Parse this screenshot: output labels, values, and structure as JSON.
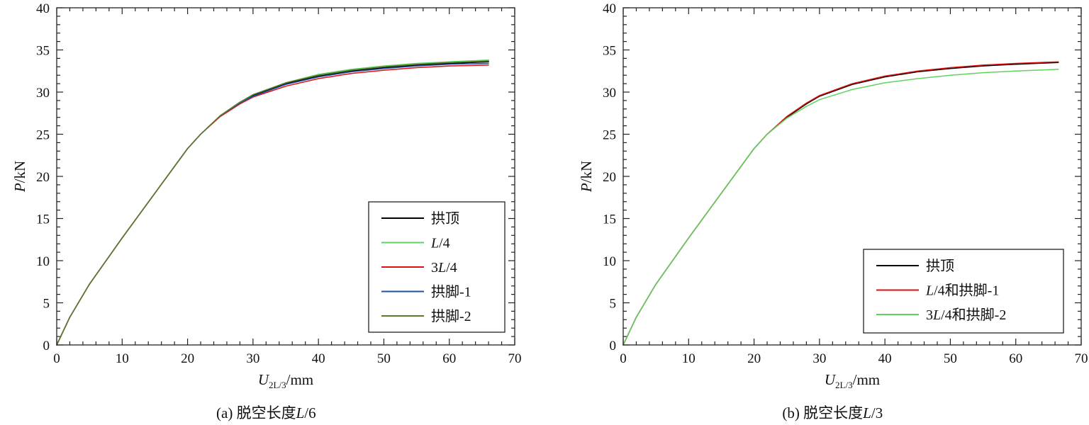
{
  "chart_data": [
    {
      "type": "line",
      "caption": "(a) 脱空长度L/6",
      "xlabel": {
        "main": "U",
        "sub": "2L/3",
        "unit": "/mm"
      },
      "ylabel": {
        "main": "P",
        "unit": "/kN"
      },
      "xlim": [
        0,
        70
      ],
      "ylim": [
        0,
        40
      ],
      "xticks": [
        0,
        10,
        20,
        30,
        40,
        50,
        60,
        70
      ],
      "yticks": [
        0,
        5,
        10,
        15,
        20,
        25,
        30,
        35,
        40
      ],
      "grid": false,
      "legend_position": "bottom-right",
      "series": [
        {
          "name": "拱顶",
          "color": "#000000",
          "x": [
            0,
            2,
            5,
            10,
            15,
            20,
            22,
            25,
            28,
            30,
            35,
            40,
            45,
            50,
            55,
            60,
            66
          ],
          "y": [
            0,
            3.3,
            7.2,
            12.7,
            18.0,
            23.3,
            25.0,
            27.2,
            28.8,
            29.6,
            31.0,
            31.9,
            32.5,
            32.9,
            33.2,
            33.4,
            33.6
          ]
        },
        {
          "name": "L/4",
          "color": "#5fd35f",
          "x": [
            0,
            2,
            5,
            10,
            15,
            20,
            22,
            25,
            28,
            30,
            35,
            40,
            45,
            50,
            55,
            60,
            66
          ],
          "y": [
            0,
            3.3,
            7.2,
            12.7,
            18.0,
            23.3,
            25.0,
            27.2,
            28.8,
            29.7,
            31.1,
            32.1,
            32.7,
            33.1,
            33.4,
            33.6,
            33.8
          ]
        },
        {
          "name": "3L/4",
          "color": "#e01010",
          "x": [
            0,
            2,
            5,
            10,
            15,
            20,
            22,
            25,
            28,
            30,
            35,
            40,
            45,
            50,
            55,
            60,
            66
          ],
          "y": [
            0,
            3.3,
            7.2,
            12.7,
            18.0,
            23.3,
            25.0,
            27.1,
            28.6,
            29.4,
            30.7,
            31.6,
            32.2,
            32.6,
            32.9,
            33.1,
            33.2
          ]
        },
        {
          "name": "拱脚-1",
          "color": "#1f4fa8",
          "x": [
            0,
            2,
            5,
            10,
            15,
            20,
            22,
            25,
            28,
            30,
            35,
            40,
            45,
            50,
            55,
            60,
            66
          ],
          "y": [
            0,
            3.3,
            7.2,
            12.7,
            18.0,
            23.3,
            25.0,
            27.2,
            28.7,
            29.5,
            30.9,
            31.8,
            32.4,
            32.8,
            33.1,
            33.3,
            33.4
          ]
        },
        {
          "name": "拱脚-2",
          "color": "#5a7a2a",
          "x": [
            0,
            2,
            5,
            10,
            15,
            20,
            22,
            25,
            28,
            30,
            35,
            40,
            45,
            50,
            55,
            60,
            66
          ],
          "y": [
            0,
            3.3,
            7.2,
            12.7,
            18.0,
            23.3,
            25.0,
            27.2,
            28.8,
            29.7,
            31.1,
            32.0,
            32.6,
            33.0,
            33.3,
            33.5,
            33.7
          ]
        }
      ]
    },
    {
      "type": "line",
      "caption": "(b) 脱空长度L/3",
      "xlabel": {
        "main": "U",
        "sub": "2L/3",
        "unit": "/mm"
      },
      "ylabel": {
        "main": "P",
        "unit": "/kN"
      },
      "xlim": [
        0,
        70
      ],
      "ylim": [
        0,
        40
      ],
      "xticks": [
        0,
        10,
        20,
        30,
        40,
        50,
        60,
        70
      ],
      "yticks": [
        0,
        5,
        10,
        15,
        20,
        25,
        30,
        35,
        40
      ],
      "grid": false,
      "legend_position": "bottom-right",
      "series": [
        {
          "name": "拱顶",
          "color": "#000000",
          "x": [
            0,
            2,
            5,
            10,
            15,
            20,
            22,
            25,
            28,
            30,
            35,
            40,
            45,
            50,
            55,
            60,
            66.5
          ],
          "y": [
            0,
            3.3,
            7.2,
            12.7,
            18.0,
            23.3,
            25.0,
            27.0,
            28.6,
            29.5,
            30.9,
            31.8,
            32.4,
            32.8,
            33.1,
            33.3,
            33.5
          ]
        },
        {
          "name": "L/4和拱脚-1",
          "color": "#e01010",
          "x": [
            0,
            2,
            5,
            10,
            15,
            20,
            22,
            25,
            28,
            30,
            35,
            40,
            45,
            50,
            55,
            60,
            66.5
          ],
          "y": [
            0,
            3.3,
            7.2,
            12.7,
            18.0,
            23.3,
            25.0,
            27.1,
            28.7,
            29.6,
            31.0,
            31.9,
            32.5,
            32.9,
            33.2,
            33.4,
            33.6
          ]
        },
        {
          "name": "3L/4和拱脚-2",
          "color": "#5fd35f",
          "x": [
            0,
            2,
            5,
            10,
            15,
            20,
            22,
            25,
            28,
            30,
            35,
            40,
            45,
            50,
            55,
            60,
            66.5
          ],
          "y": [
            0,
            3.3,
            7.2,
            12.7,
            18.0,
            23.3,
            25.0,
            26.9,
            28.3,
            29.1,
            30.3,
            31.1,
            31.6,
            32.0,
            32.3,
            32.5,
            32.7
          ]
        }
      ]
    }
  ]
}
